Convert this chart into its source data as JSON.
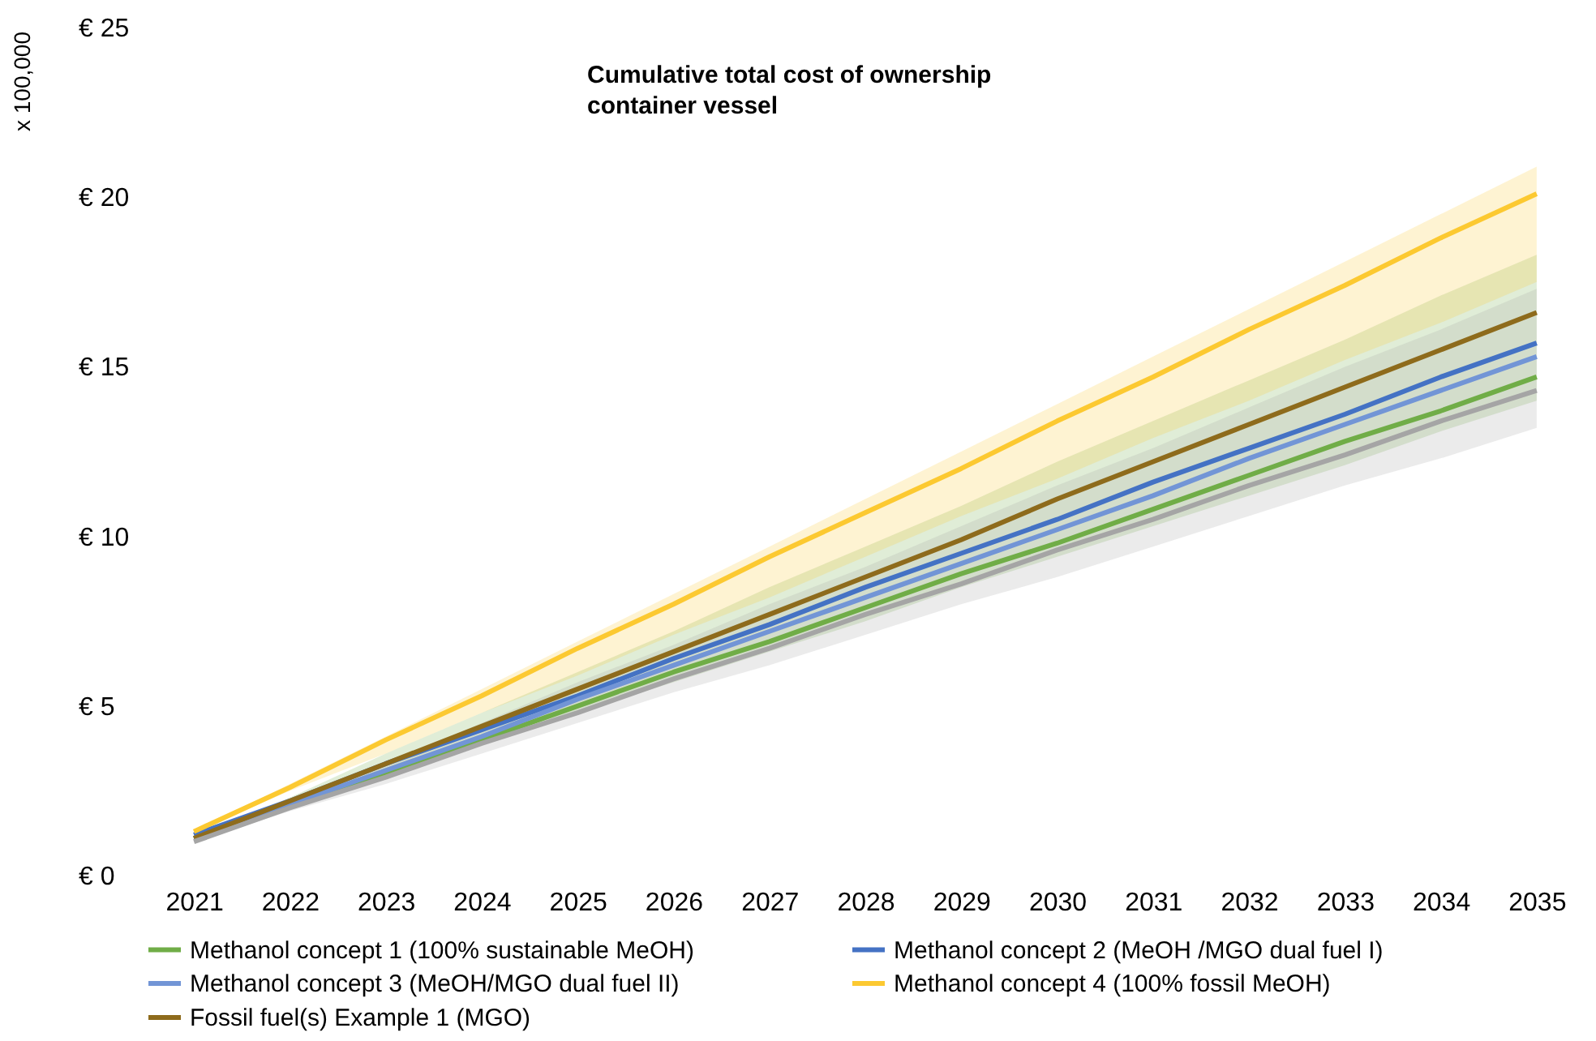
{
  "chart_data": {
    "type": "line",
    "title": "Cumulative total cost of ownership container vessel",
    "ylabel": "x 100,000",
    "categories": [
      "2021",
      "2022",
      "2023",
      "2024",
      "2025",
      "2026",
      "2027",
      "2028",
      "2029",
      "2030",
      "2031",
      "2032",
      "2033",
      "2034",
      "2035"
    ],
    "ylim": [
      0,
      25
    ],
    "yticks": [
      {
        "value": 0,
        "label": "€ 0"
      },
      {
        "value": 5,
        "label": "€ 5"
      },
      {
        "value": 10,
        "label": "€ 10"
      },
      {
        "value": 15,
        "label": "€ 15"
      },
      {
        "value": 20,
        "label": "€ 20"
      },
      {
        "value": 25,
        "label": "€ 25"
      }
    ],
    "legend": "bottom",
    "series": [
      {
        "name": "Methanol concept 1 (100% sustainable MeOH)",
        "color": "#70ad47",
        "values": [
          1.1,
          2.1,
          3.0,
          4.0,
          5.0,
          6.0,
          6.9,
          7.9,
          8.9,
          9.8,
          10.8,
          11.8,
          12.8,
          13.7,
          14.7
        ],
        "lower": [
          1.1,
          2.0,
          2.9,
          3.9,
          4.8,
          5.7,
          6.6,
          7.5,
          8.5,
          9.4,
          10.3,
          11.2,
          12.1,
          13.1,
          14.0
        ],
        "upper": [
          1.1,
          2.3,
          3.6,
          4.8,
          6.0,
          7.2,
          8.5,
          9.7,
          10.9,
          12.2,
          13.4,
          14.6,
          15.8,
          17.1,
          18.3
        ]
      },
      {
        "name": "Methanol concept 2 (MeOH /MGO dual fuel I)",
        "color": "#4472c4",
        "values": [
          1.2,
          2.2,
          3.3,
          4.3,
          5.3,
          6.4,
          7.4,
          8.5,
          9.5,
          10.5,
          11.6,
          12.6,
          13.6,
          14.7,
          15.7
        ]
      },
      {
        "name": "Methanol concept 3 (MeOH/MGO dual fuel II)",
        "color": "#7295d6",
        "values": [
          1.1,
          2.1,
          3.1,
          4.1,
          5.2,
          6.2,
          7.2,
          8.2,
          9.2,
          10.2,
          11.2,
          12.3,
          13.3,
          14.3,
          15.3
        ]
      },
      {
        "name": "Methanol concept 4 (100% fossil MeOH)",
        "color": "#fcc931",
        "values": [
          1.3,
          2.6,
          4.0,
          5.3,
          6.7,
          8.0,
          9.4,
          10.7,
          12.0,
          13.4,
          14.7,
          16.1,
          17.4,
          18.8,
          20.1
        ],
        "lower": [
          1.3,
          2.5,
          3.6,
          4.8,
          5.9,
          7.1,
          8.2,
          9.4,
          10.6,
          11.7,
          12.9,
          14.0,
          15.2,
          16.3,
          17.5
        ],
        "upper": [
          1.3,
          2.7,
          4.1,
          5.5,
          6.9,
          8.3,
          9.7,
          11.1,
          12.5,
          13.9,
          15.3,
          16.7,
          18.1,
          19.5,
          20.9
        ]
      },
      {
        "name": "Fossil fuel(s) Example 1 (MGO)",
        "color": "#8e6b1c",
        "values": [
          1.1,
          2.2,
          3.3,
          4.4,
          5.5,
          6.6,
          7.7,
          8.8,
          9.9,
          11.1,
          12.2,
          13.3,
          14.4,
          15.5,
          16.6
        ]
      },
      {
        "color": "#a5a5a5",
        "values": [
          1.0,
          2.0,
          2.9,
          3.9,
          4.8,
          5.8,
          6.7,
          7.7,
          8.6,
          9.6,
          10.5,
          11.5,
          12.4,
          13.4,
          14.3
        ],
        "lower": [
          1.0,
          1.9,
          2.7,
          3.6,
          4.5,
          5.4,
          6.2,
          7.1,
          8.0,
          8.8,
          9.7,
          10.6,
          11.5,
          12.3,
          13.2
        ],
        "upper": [
          1.0,
          2.2,
          3.3,
          4.5,
          5.7,
          6.8,
          8.0,
          9.1,
          10.3,
          11.5,
          12.6,
          13.8,
          15.0,
          16.1,
          17.3
        ]
      }
    ]
  }
}
